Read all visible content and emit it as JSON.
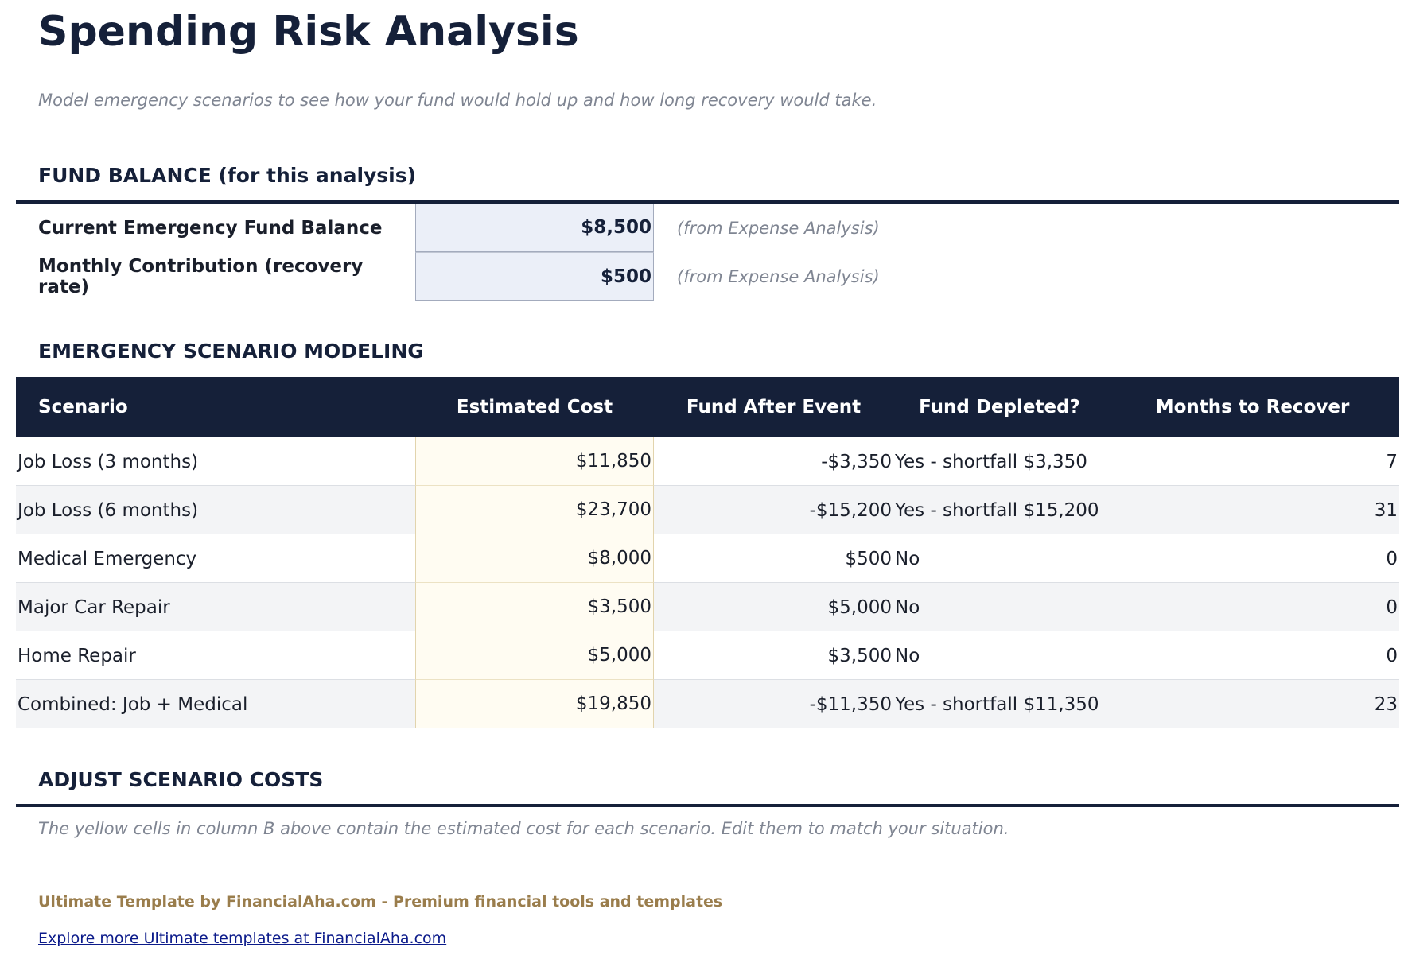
{
  "header": {
    "title": "Spending Risk Analysis",
    "subtitle": "Model emergency scenarios to see how your fund would hold up and how long recovery would take."
  },
  "fund_balance": {
    "heading": "FUND BALANCE (for this analysis)",
    "rows": [
      [
        "Current Emergency Fund Balance",
        "$8,500",
        "(from Expense Analysis)"
      ],
      [
        "Monthly Contribution (recovery rate)",
        "$500",
        "(from Expense Analysis)"
      ]
    ]
  },
  "scenarios": {
    "heading": "EMERGENCY SCENARIO MODELING",
    "columns": [
      "Scenario",
      "Estimated Cost",
      "Fund After Event",
      "Fund Depleted?",
      "Months to Recover"
    ],
    "rows": [
      [
        "Job Loss (3 months)",
        "$11,850",
        "-$3,350",
        "Yes - shortfall $3,350",
        "7"
      ],
      [
        "Job Loss (6 months)",
        "$23,700",
        "-$15,200",
        "Yes - shortfall $15,200",
        "31"
      ],
      [
        "Medical Emergency",
        "$8,000",
        "$500",
        "No",
        "0"
      ],
      [
        "Major Car Repair",
        "$3,500",
        "$5,000",
        "No",
        "0"
      ],
      [
        "Home Repair",
        "$5,000",
        "$3,500",
        "No",
        "0"
      ],
      [
        "Combined: Job + Medical",
        "$19,850",
        "-$11,350",
        "Yes - shortfall $11,350",
        "23"
      ]
    ]
  },
  "adjust": {
    "heading": "ADJUST SCENARIO COSTS",
    "note": "The yellow cells in column B above contain the estimated cost for each scenario. Edit them to match your situation."
  },
  "footer": {
    "brand": "Ultimate Template by FinancialAha.com - Premium financial tools and templates",
    "link": "Explore more Ultimate templates at FinancialAha.com"
  }
}
